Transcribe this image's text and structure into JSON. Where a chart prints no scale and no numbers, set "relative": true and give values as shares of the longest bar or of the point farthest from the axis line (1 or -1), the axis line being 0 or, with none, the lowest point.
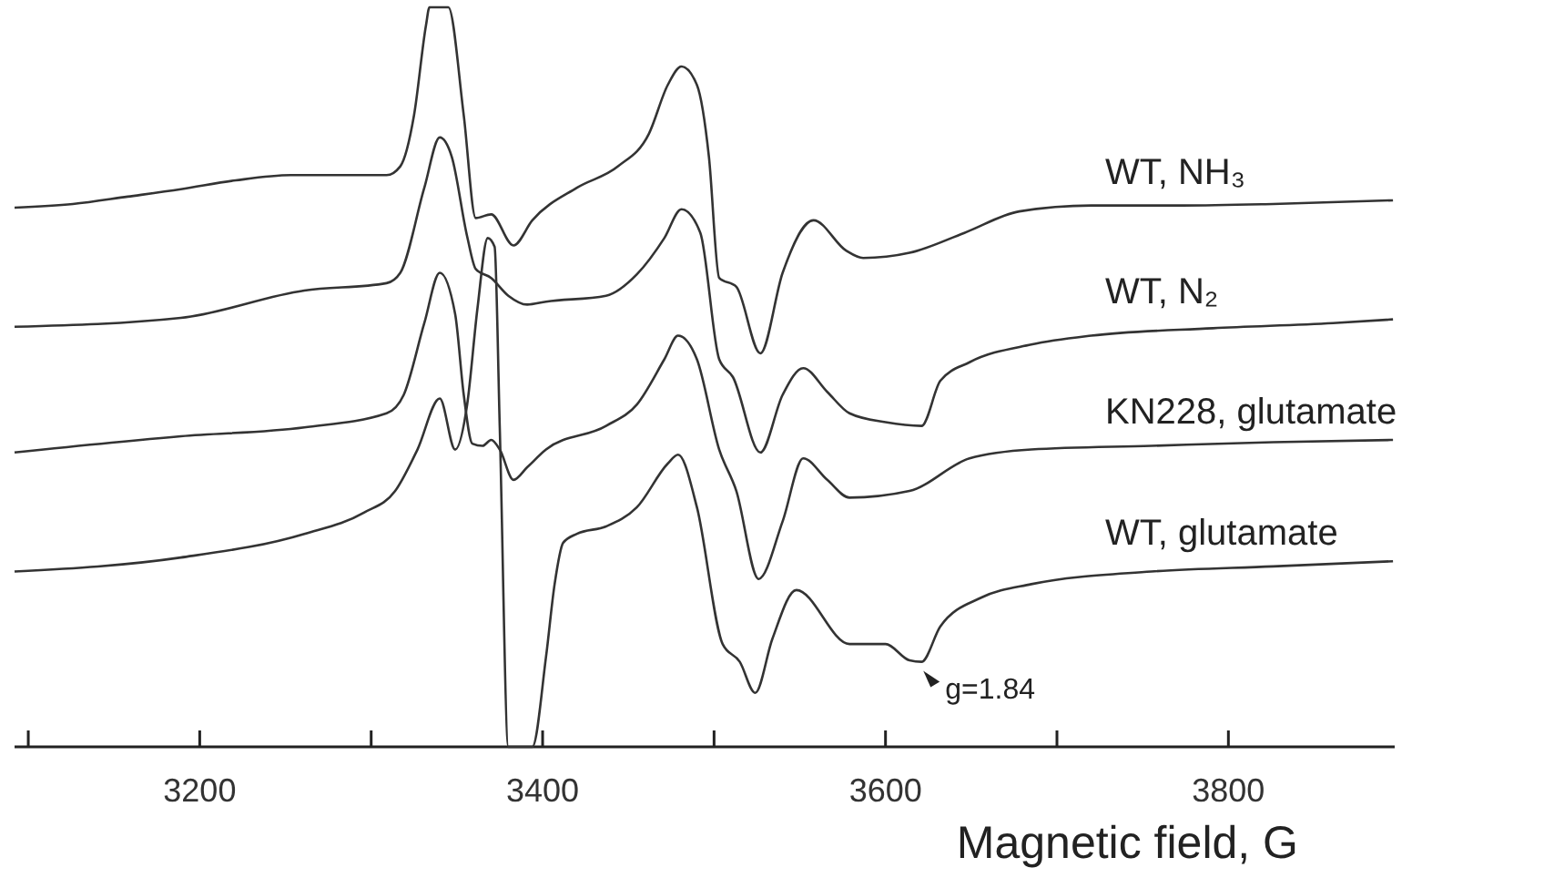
{
  "chart_data": {
    "type": "line",
    "relative": true,
    "xlabel": "Magnetic field, G",
    "xlim": [
      3092,
      3897
    ],
    "xticks": [
      {
        "value": 3100,
        "label": null
      },
      3200,
      {
        "value": 3300,
        "label": null
      },
      3400,
      {
        "value": 3500,
        "label": null
      },
      3600,
      {
        "value": 3700,
        "label": null
      },
      3800
    ],
    "tick_labels": "x",
    "grid": false,
    "legend": false,
    "marker": "none",
    "line_style": "solid",
    "annotations": [
      {
        "text": "g=1.84",
        "x": 3621,
        "y": 0.115
      }
    ],
    "series": [
      {
        "name": "WT, NH₃",
        "color": "#333333",
        "x": [
          3092,
          3126,
          3158,
          3189,
          3221,
          3253,
          3285,
          3309,
          3317,
          3325,
          3332,
          3334,
          3345,
          3354,
          3361,
          3370,
          3383,
          3394,
          3420,
          3444,
          3462,
          3473,
          3481,
          3490,
          3497,
          3503,
          3513,
          3527,
          3540,
          3558,
          3577,
          3587,
          3614,
          3646,
          3678,
          3720,
          3773,
          3826,
          3896
        ],
        "values": [
          0.729,
          0.734,
          0.744,
          0.754,
          0.766,
          0.773,
          0.773,
          0.773,
          0.785,
          0.854,
          0.976,
          1,
          1,
          0.854,
          0.715,
          0.72,
          0.678,
          0.712,
          0.756,
          0.785,
          0.829,
          0.895,
          0.92,
          0.895,
          0.798,
          0.634,
          0.622,
          0.532,
          0.641,
          0.712,
          0.671,
          0.661,
          0.668,
          0.695,
          0.724,
          0.732,
          0.732,
          0.734,
          0.739
        ]
      },
      {
        "name": "WT, N₂",
        "color": "#333333",
        "x": [
          3092,
          3189,
          3261,
          3309,
          3317,
          3331,
          3340,
          3347,
          3356,
          3361,
          3370,
          3380,
          3391,
          3402,
          3437,
          3455,
          3471,
          3481,
          3492,
          3503,
          3511,
          3527,
          3540,
          3552,
          3566,
          3579,
          3600,
          3621,
          3632,
          3649,
          3685,
          3720,
          3791,
          3861,
          3896
        ],
        "values": [
          0.568,
          0.58,
          0.617,
          0.627,
          0.641,
          0.756,
          0.824,
          0.798,
          0.69,
          0.646,
          0.634,
          0.61,
          0.598,
          0.602,
          0.61,
          0.639,
          0.688,
          0.727,
          0.695,
          0.524,
          0.5,
          0.398,
          0.476,
          0.512,
          0.48,
          0.451,
          0.439,
          0.434,
          0.495,
          0.52,
          0.544,
          0.556,
          0.566,
          0.573,
          0.578
        ]
      },
      {
        "name": "KN228, glutamate",
        "color": "#333333",
        "x": [
          3092,
          3189,
          3261,
          3309,
          3319,
          3331,
          3340,
          3349,
          3354,
          3359,
          3365,
          3370,
          3375,
          3383,
          3391,
          3402,
          3437,
          3455,
          3471,
          3479,
          3490,
          3503,
          3513,
          3526,
          3540,
          3552,
          3566,
          3579,
          3614,
          3649,
          3685,
          3755,
          3826,
          3896
        ],
        "values": [
          0.398,
          0.42,
          0.432,
          0.451,
          0.476,
          0.573,
          0.641,
          0.585,
          0.476,
          0.41,
          0.407,
          0.415,
          0.402,
          0.361,
          0.378,
          0.402,
          0.434,
          0.463,
          0.524,
          0.556,
          0.524,
          0.402,
          0.346,
          0.227,
          0.305,
          0.39,
          0.361,
          0.337,
          0.346,
          0.39,
          0.402,
          0.407,
          0.412,
          0.415
        ]
      },
      {
        "name": "WT, glutamate",
        "color": "#333333",
        "x": [
          3092,
          3189,
          3261,
          3296,
          3314,
          3327,
          3340,
          3349,
          3356,
          3362,
          3368,
          3372,
          3375,
          3380,
          3394,
          3402,
          3407,
          3412,
          3420,
          3437,
          3455,
          3473,
          3479,
          3490,
          3505,
          3515,
          3524,
          3534,
          3548,
          3579,
          3600,
          3614,
          3621,
          3632,
          3656,
          3685,
          3755,
          3826,
          3896
        ],
        "values": [
          0.237,
          0.256,
          0.288,
          0.317,
          0.346,
          0.402,
          0.471,
          0.402,
          0.463,
          0.593,
          0.688,
          0.676,
          0.432,
          0,
          0,
          0.122,
          0.22,
          0.276,
          0.288,
          0.298,
          0.324,
          0.383,
          0.395,
          0.324,
          0.139,
          0.115,
          0.073,
          0.146,
          0.212,
          0.139,
          0.139,
          0.117,
          0.115,
          0.163,
          0.202,
          0.22,
          0.237,
          0.244,
          0.251
        ]
      }
    ]
  }
}
